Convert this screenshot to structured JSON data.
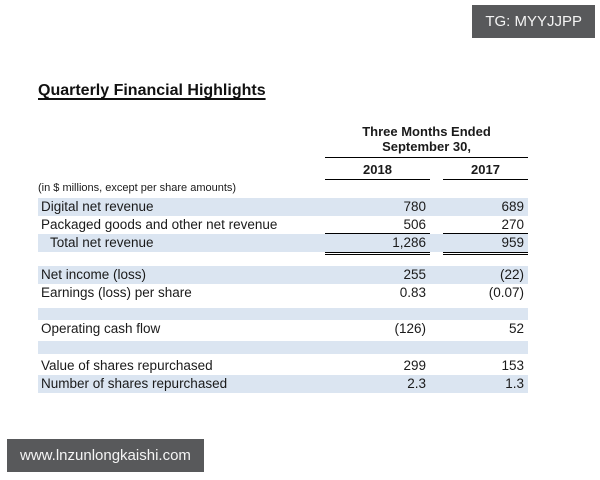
{
  "overlays": {
    "top_badge": {
      "text": "TG: MYYJJPP"
    },
    "bottom_badge": {
      "text": "www.lnzunlongkaishi.com"
    }
  },
  "document": {
    "title": "Quarterly Financial Highlights",
    "table": {
      "period_line1": "Three Months Ended",
      "period_line2": "September 30,",
      "col_2018": "2018",
      "col_2017": "2017",
      "note": "(in $ millions, except per share amounts)",
      "rows": {
        "digital": {
          "label": "Digital net revenue",
          "y2018": "780",
          "y2017": "689"
        },
        "packaged": {
          "label": "Packaged goods and other net revenue",
          "y2018": "506",
          "y2017": "270"
        },
        "total": {
          "label": "Total net revenue",
          "y2018": "1,286",
          "y2017": "959"
        },
        "net_income": {
          "label": "Net income (loss)",
          "y2018": "255",
          "y2017": "(22)"
        },
        "eps": {
          "label": "Earnings (loss) per share",
          "y2018": "0.83",
          "y2017": "(0.07)"
        },
        "operating_cash_flow": {
          "label": "Operating cash flow",
          "y2018": "(126)",
          "y2017": "52"
        },
        "value_repurchased": {
          "label": "Value of shares repurchased",
          "y2018": "299",
          "y2017": "153"
        },
        "number_repurchased": {
          "label": "Number of shares repurchased",
          "y2018": "2.3",
          "y2017": "1.3"
        }
      }
    }
  },
  "colors": {
    "page_bg": "#ffffff",
    "row_shade": "#dbe5f1",
    "badge_bg": "#58595b",
    "badge_text": "#f4f4f4",
    "text": "#1a1a1a",
    "rule": "#000000"
  }
}
